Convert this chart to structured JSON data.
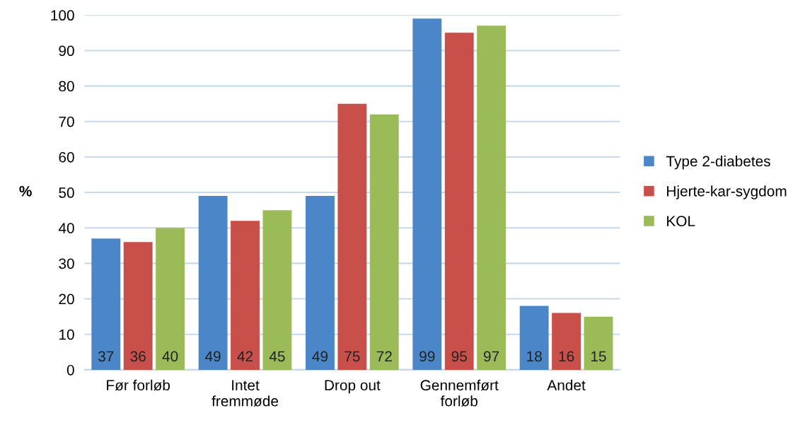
{
  "chart_data": {
    "type": "bar",
    "ylabel": "%",
    "categories": [
      "Før forløb",
      "Intet\nfremmøde",
      "Drop out",
      "Gennemført\nforløb",
      "Andet"
    ],
    "series": [
      {
        "name": "Type 2-diabetes",
        "color": "#4a86c8",
        "values": [
          37,
          49,
          49,
          99,
          18
        ]
      },
      {
        "name": "Hjerte-kar-sygdom",
        "color": "#c9504a",
        "values": [
          36,
          42,
          75,
          95,
          16
        ]
      },
      {
        "name": "KOL",
        "color": "#9bbb59",
        "values": [
          40,
          45,
          72,
          97,
          15
        ]
      }
    ],
    "ylim": [
      0,
      100
    ],
    "yticks": [
      0,
      10,
      20,
      30,
      40,
      50,
      60,
      70,
      80,
      90,
      100
    ],
    "grid": "y",
    "legend": "right",
    "data_labels": true
  }
}
